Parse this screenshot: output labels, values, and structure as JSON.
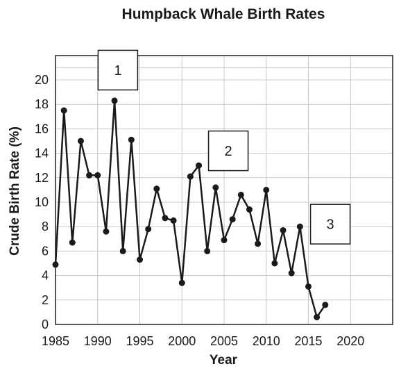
{
  "chart_data": {
    "type": "line",
    "title": "Humpback Whale Birth Rates",
    "xlabel": "Year",
    "ylabel": "Crude Birth Rate (%)",
    "xlim": [
      1985,
      2025
    ],
    "ylim": [
      0,
      20.5
    ],
    "x_ticks": [
      1985,
      1990,
      1995,
      2000,
      2005,
      2010,
      2015,
      2020
    ],
    "y_ticks": [
      0,
      2,
      4,
      6,
      8,
      10,
      12,
      14,
      16,
      18,
      20
    ],
    "grid": true,
    "series": [
      {
        "x": [
          1985,
          1986,
          1987,
          1988,
          1989,
          1990,
          1991,
          1992,
          1993,
          1994,
          1995,
          1996,
          1997,
          1998,
          1999,
          2000,
          2001,
          2002,
          2003,
          2004,
          2005,
          2006,
          2007,
          2008,
          2009,
          2010,
          2011,
          2012,
          2013,
          2014,
          2015,
          2016,
          2017
        ],
        "values": [
          4.9,
          17.5,
          6.7,
          15.0,
          12.2,
          12.2,
          7.6,
          18.3,
          6.0,
          15.1,
          5.3,
          7.8,
          11.1,
          8.7,
          8.5,
          3.4,
          12.1,
          13.0,
          6.0,
          11.2,
          6.9,
          8.6,
          10.6,
          9.4,
          6.6,
          11.0,
          5.0,
          7.7,
          4.2,
          8.0,
          3.1,
          0.6,
          1.6
        ]
      }
    ],
    "annotations": [
      {
        "label": "1",
        "x": 1992.4,
        "y": 20.8
      },
      {
        "label": "2",
        "x": 2005.5,
        "y": 14.2
      },
      {
        "label": "3",
        "x": 2017.6,
        "y": 8.2
      }
    ]
  }
}
